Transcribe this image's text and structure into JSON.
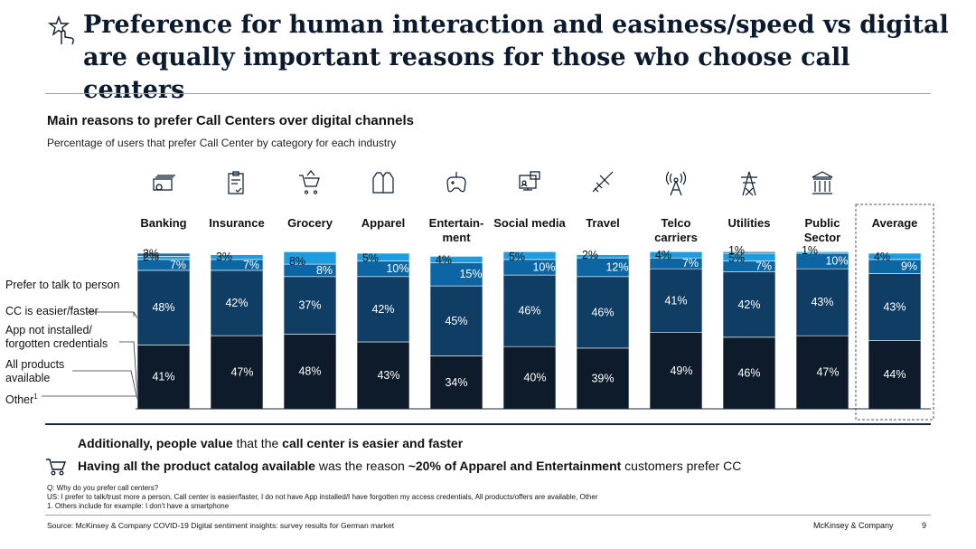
{
  "title": "Preference for human interaction and easiness/speed vs digital are equally important reasons for those who choose call centers",
  "subtitle": "Main reasons to prefer Call Centers over digital channels",
  "description": "Percentage of users that prefer Call Center by category for each industry",
  "legend_labels": {
    "prefer": "Prefer to talk to person",
    "easier": "CC is easier/faster",
    "app": "App not installed/ forgotten credentials",
    "products": "All products available",
    "other": "Other",
    "other_sup": "1"
  },
  "colors": {
    "prefer": "#0d1b2a",
    "easier": "#0f3d63",
    "products": "#1c9de0",
    "app": "#0b66a3",
    "other": "#2b6fa0"
  },
  "chart_data": {
    "type": "bar",
    "stacked": true,
    "categories": [
      "Banking",
      "Insurance",
      "Grocery",
      "Apparel",
      "Entertain- ment",
      "Social media",
      "Travel",
      "Telco carriers",
      "Utilities",
      "Public Sector",
      "Average"
    ],
    "icons": [
      "money-icon",
      "clipboard-icon",
      "shopping-cart-icon",
      "shirt-icon",
      "gamepad-icon",
      "social-media-icon",
      "airplane-icon",
      "antenna-icon",
      "power-tower-icon",
      "government-building-icon",
      "none"
    ],
    "series": [
      {
        "name": "Prefer to talk to person",
        "values": [
          41,
          47,
          48,
          43,
          34,
          40,
          39,
          49,
          46,
          47,
          44
        ]
      },
      {
        "name": "CC is easier/faster",
        "values": [
          48,
          42,
          37,
          42,
          45,
          46,
          46,
          41,
          42,
          43,
          43
        ]
      },
      {
        "name": "App not installed/forgotten credentials",
        "values": [
          7,
          7,
          8,
          10,
          15,
          10,
          12,
          7,
          7,
          10,
          9
        ]
      },
      {
        "name": "All products available",
        "values": [
          2,
          3,
          8,
          5,
          4,
          5,
          2,
          4,
          5,
          1,
          4
        ]
      },
      {
        "name": "Other",
        "values": [
          2,
          0,
          0,
          0,
          0,
          0,
          0,
          0,
          1,
          0,
          0
        ]
      }
    ],
    "data_labels": [
      [
        "41%",
        "48%",
        "7%",
        "2%",
        "2%"
      ],
      [
        "47%",
        "42%",
        "7%",
        "3%"
      ],
      [
        "48%",
        "37%",
        "8%",
        "8%"
      ],
      [
        "43%",
        "42%",
        "10%",
        "5%"
      ],
      [
        "34%",
        "45%",
        "15%",
        "4%"
      ],
      [
        "40%",
        "46%",
        "10%",
        "5%"
      ],
      [
        "39%",
        "46%",
        "12%",
        "2%"
      ],
      [
        "49%",
        "41%",
        "7%",
        "4%"
      ],
      [
        "46%",
        "42%",
        "7%",
        "5%",
        "1%"
      ],
      [
        "47%",
        "43%",
        "10%",
        "1%"
      ],
      [
        "44%",
        "43%",
        "9%",
        "4%"
      ]
    ],
    "highlight_category": "Average"
  },
  "notes": {
    "line1_bold1": "Additionally, people value",
    "line1_text": " that the ",
    "line1_bold2": "call center is easier and faster",
    "line2_bold1": "Having all the product catalog available",
    "line2_text1": " was the reason ",
    "line2_bold2": "~20% of Apparel and Entertainment",
    "line2_text2": " customers prefer CC"
  },
  "footnotes": {
    "q": "Q: Why do you prefer call centers?",
    "us": "US: I prefer to talk/trust more a person, Call center is easier/faster, I do not have App installed/I have forgotten my access credentials, All products/offers are available, Other",
    "one": "1. Others include for example: I don't have a smartphone"
  },
  "source": "Source: McKinsey & Company COVID-19 Digital sentiment insights: survey results for German market",
  "brand": "McKinsey & Company",
  "page_number": "9"
}
